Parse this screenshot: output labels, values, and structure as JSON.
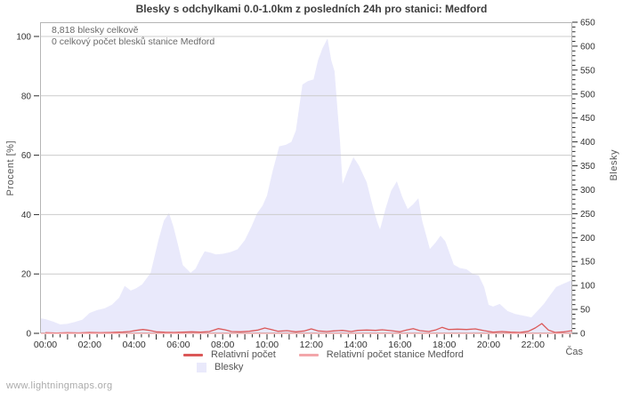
{
  "page": {
    "watermark": "www.lightningmaps.org"
  },
  "chart": {
    "title": "Blesky s odchylkami 0.0-1.0km z posledních 24h pro stanici: Medford",
    "annotations": {
      "total": "8,818 blesky celkově",
      "station": "0 celkový počet blesků stanice Medford"
    },
    "legend": [
      {
        "label": "Relativní počet",
        "swatch": "line",
        "color": "#db5858"
      },
      {
        "label": "Relativní počet stanice Medford",
        "swatch": "line",
        "color": "#f3a6aa"
      },
      {
        "label": "Blesky",
        "swatch": "area",
        "color": "#e9e9fb"
      }
    ],
    "colors": {
      "area_fill": "#e9e9fb",
      "relative_line": "#db5858",
      "station_line": "#f3a6aa",
      "gridline": "#cccccc",
      "plot_border": "#b5b5b5",
      "tick": "#2a2a2a",
      "tick_text": "#333333"
    }
  },
  "chart_data": {
    "type": "area",
    "title": "Blesky s odchylkami 0.0-1.0km z posledních 24h pro stanici: Medford",
    "xlabel": "Čas",
    "ylabel_left": "Procent [%]",
    "ylabel_right": "Blesky",
    "ylim_left": [
      0,
      100
    ],
    "ylim_right": [
      0,
      650
    ],
    "x_hours_visible": [
      0,
      23.77
    ],
    "grid": "horizontal-only",
    "legend_position": "bottom-center",
    "axes": {
      "x": {
        "label": "Čas",
        "tick_hours": [
          0,
          2,
          4,
          6,
          8,
          10,
          12,
          14,
          16,
          18,
          20,
          22
        ],
        "tick_labels": [
          "00:00",
          "02:00",
          "04:00",
          "06:00",
          "08:00",
          "10:00",
          "12:00",
          "14:00",
          "16:00",
          "18:00",
          "20:00",
          "22:00"
        ],
        "minor_tick_minutes": 20
      },
      "y_left": {
        "label": "Procent [%]",
        "ticks": [
          0,
          20,
          40,
          60,
          80,
          100
        ]
      },
      "y_right": {
        "label": "Blesky",
        "ticks": [
          0,
          50,
          100,
          150,
          200,
          250,
          300,
          350,
          400,
          450,
          500,
          550,
          600,
          650
        ],
        "minor_step": 10
      }
    },
    "series": [
      {
        "name": "Blesky",
        "type": "area",
        "axis": "left_percent",
        "color": "#e9e9fb",
        "points": [
          [
            -0.2,
            5.0
          ],
          [
            0,
            4.8
          ],
          [
            0.33,
            4.0
          ],
          [
            0.67,
            3.0
          ],
          [
            1.0,
            3.2
          ],
          [
            1.33,
            3.8
          ],
          [
            1.67,
            4.6
          ],
          [
            2.0,
            6.9
          ],
          [
            2.33,
            7.8
          ],
          [
            2.67,
            8.4
          ],
          [
            3.0,
            9.6
          ],
          [
            3.33,
            12.0
          ],
          [
            3.58,
            16.0
          ],
          [
            3.85,
            14.4
          ],
          [
            4.1,
            15.2
          ],
          [
            4.37,
            16.5
          ],
          [
            4.75,
            20.4
          ],
          [
            5.1,
            31.4
          ],
          [
            5.35,
            38.0
          ],
          [
            5.58,
            40.5
          ],
          [
            5.78,
            35.9
          ],
          [
            6.0,
            29.3
          ],
          [
            6.2,
            23.0
          ],
          [
            6.55,
            20.4
          ],
          [
            6.78,
            21.8
          ],
          [
            6.97,
            24.8
          ],
          [
            7.19,
            27.6
          ],
          [
            7.45,
            27.2
          ],
          [
            7.7,
            26.6
          ],
          [
            8.0,
            26.8
          ],
          [
            8.33,
            27.3
          ],
          [
            8.67,
            28.3
          ],
          [
            9.0,
            31.4
          ],
          [
            9.3,
            36.0
          ],
          [
            9.55,
            40.4
          ],
          [
            9.8,
            43.0
          ],
          [
            10.0,
            46.4
          ],
          [
            10.25,
            54.5
          ],
          [
            10.55,
            63.0
          ],
          [
            10.85,
            63.5
          ],
          [
            11.1,
            64.5
          ],
          [
            11.3,
            68.3
          ],
          [
            11.45,
            76.0
          ],
          [
            11.6,
            83.8
          ],
          [
            11.85,
            85.0
          ],
          [
            12.1,
            85.5
          ],
          [
            12.3,
            92.0
          ],
          [
            12.5,
            96.0
          ],
          [
            12.73,
            99.3
          ],
          [
            12.9,
            92.0
          ],
          [
            13.05,
            88.3
          ],
          [
            13.2,
            73.4
          ],
          [
            13.3,
            64.0
          ],
          [
            13.41,
            50.3
          ],
          [
            13.65,
            55.0
          ],
          [
            13.9,
            59.3
          ],
          [
            14.15,
            56.5
          ],
          [
            14.5,
            50.9
          ],
          [
            14.8,
            42.0
          ],
          [
            14.98,
            37.4
          ],
          [
            15.1,
            35.0
          ],
          [
            15.35,
            42.0
          ],
          [
            15.6,
            48.0
          ],
          [
            15.86,
            51.2
          ],
          [
            16.1,
            46.0
          ],
          [
            16.35,
            41.9
          ],
          [
            16.6,
            43.5
          ],
          [
            16.83,
            45.5
          ],
          [
            17.0,
            38.0
          ],
          [
            17.35,
            28.4
          ],
          [
            17.6,
            30.5
          ],
          [
            17.83,
            32.9
          ],
          [
            18.05,
            31.0
          ],
          [
            18.43,
            23.1
          ],
          [
            18.7,
            22.0
          ],
          [
            19.0,
            21.6
          ],
          [
            19.3,
            20.0
          ],
          [
            19.55,
            19.5
          ],
          [
            19.8,
            15.6
          ],
          [
            20.0,
            9.6
          ],
          [
            20.2,
            9.0
          ],
          [
            20.5,
            9.9
          ],
          [
            20.85,
            7.5
          ],
          [
            21.2,
            6.5
          ],
          [
            21.55,
            6.0
          ],
          [
            21.93,
            5.4
          ],
          [
            22.2,
            7.5
          ],
          [
            22.5,
            10.0
          ],
          [
            22.75,
            12.6
          ],
          [
            23.05,
            15.6
          ],
          [
            23.4,
            16.8
          ],
          [
            23.77,
            18.0
          ]
        ]
      },
      {
        "name": "Relativní počet",
        "type": "line",
        "axis": "left_percent",
        "color": "#db5858",
        "points": [
          [
            0,
            0.2
          ],
          [
            0.5,
            0.1
          ],
          [
            1,
            0.2
          ],
          [
            1.5,
            0.15
          ],
          [
            2,
            0.3
          ],
          [
            2.5,
            0.2
          ],
          [
            3,
            0.3
          ],
          [
            3.5,
            0.45
          ],
          [
            3.8,
            0.6
          ],
          [
            4.1,
            1.0
          ],
          [
            4.4,
            1.3
          ],
          [
            4.7,
            1.0
          ],
          [
            5.0,
            0.5
          ],
          [
            5.4,
            0.35
          ],
          [
            5.8,
            0.3
          ],
          [
            6.2,
            0.4
          ],
          [
            6.6,
            0.5
          ],
          [
            7.0,
            0.4
          ],
          [
            7.4,
            0.6
          ],
          [
            7.8,
            1.6
          ],
          [
            8.1,
            1.2
          ],
          [
            8.4,
            0.6
          ],
          [
            8.8,
            0.5
          ],
          [
            9.2,
            0.7
          ],
          [
            9.6,
            1.1
          ],
          [
            9.9,
            1.8
          ],
          [
            10.2,
            1.3
          ],
          [
            10.5,
            0.7
          ],
          [
            10.9,
            0.9
          ],
          [
            11.3,
            0.5
          ],
          [
            11.7,
            0.8
          ],
          [
            12.0,
            1.5
          ],
          [
            12.3,
            0.8
          ],
          [
            12.7,
            0.6
          ],
          [
            13.0,
            0.8
          ],
          [
            13.4,
            1.0
          ],
          [
            13.8,
            0.6
          ],
          [
            14.1,
            1.0
          ],
          [
            14.5,
            1.1
          ],
          [
            14.9,
            1.0
          ],
          [
            15.2,
            1.2
          ],
          [
            15.6,
            0.9
          ],
          [
            16.0,
            0.5
          ],
          [
            16.3,
            1.1
          ],
          [
            16.6,
            1.6
          ],
          [
            16.9,
            0.9
          ],
          [
            17.3,
            0.6
          ],
          [
            17.6,
            1.1
          ],
          [
            17.9,
            2.0
          ],
          [
            18.2,
            1.3
          ],
          [
            18.6,
            1.4
          ],
          [
            19.0,
            1.3
          ],
          [
            19.4,
            1.5
          ],
          [
            19.8,
            0.9
          ],
          [
            20.2,
            0.4
          ],
          [
            20.6,
            0.6
          ],
          [
            21.0,
            0.4
          ],
          [
            21.4,
            0.3
          ],
          [
            21.8,
            0.7
          ],
          [
            22.1,
            1.8
          ],
          [
            22.4,
            3.3
          ],
          [
            22.7,
            1.1
          ],
          [
            23.0,
            0.3
          ],
          [
            23.4,
            0.5
          ],
          [
            23.77,
            0.9
          ]
        ]
      },
      {
        "name": "Relativní počet stanice Medford",
        "type": "line",
        "axis": "left_percent",
        "color": "#f3a6aa",
        "points": [
          [
            -0.2,
            0
          ],
          [
            23.77,
            0
          ]
        ]
      }
    ]
  }
}
